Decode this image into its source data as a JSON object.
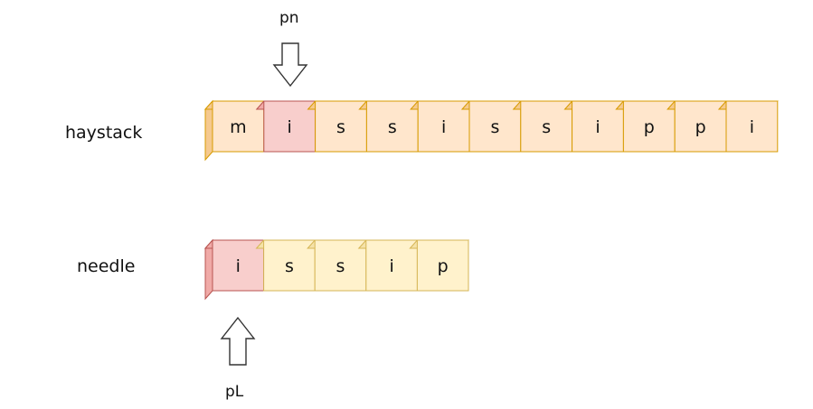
{
  "haystack": {
    "label": "haystack",
    "cells": [
      "m",
      "i",
      "s",
      "s",
      "i",
      "s",
      "s",
      "i",
      "p",
      "p",
      "i"
    ],
    "highlight_index": 1
  },
  "needle": {
    "label": "needle",
    "cells": [
      "i",
      "s",
      "s",
      "i",
      "p"
    ],
    "highlight_index": 0
  },
  "pointers": {
    "pn": {
      "label": "pn",
      "direction": "down",
      "target": "haystack",
      "index": 1
    },
    "pL": {
      "label": "pL",
      "direction": "up",
      "target": "needle",
      "index": 0
    }
  },
  "colors": {
    "haystack_face": "#ffe6cc",
    "haystack_side": "#f5c98f",
    "haystack_stroke": "#d79b00",
    "needle_face": "#fff2cc",
    "needle_side": "#f5e2a8",
    "needle_stroke": "#d6b656",
    "highlight_face": "#f8cecc",
    "highlight_side": "#f0aaa7",
    "highlight_stroke": "#b85450",
    "arrow_stroke": "#333333"
  }
}
